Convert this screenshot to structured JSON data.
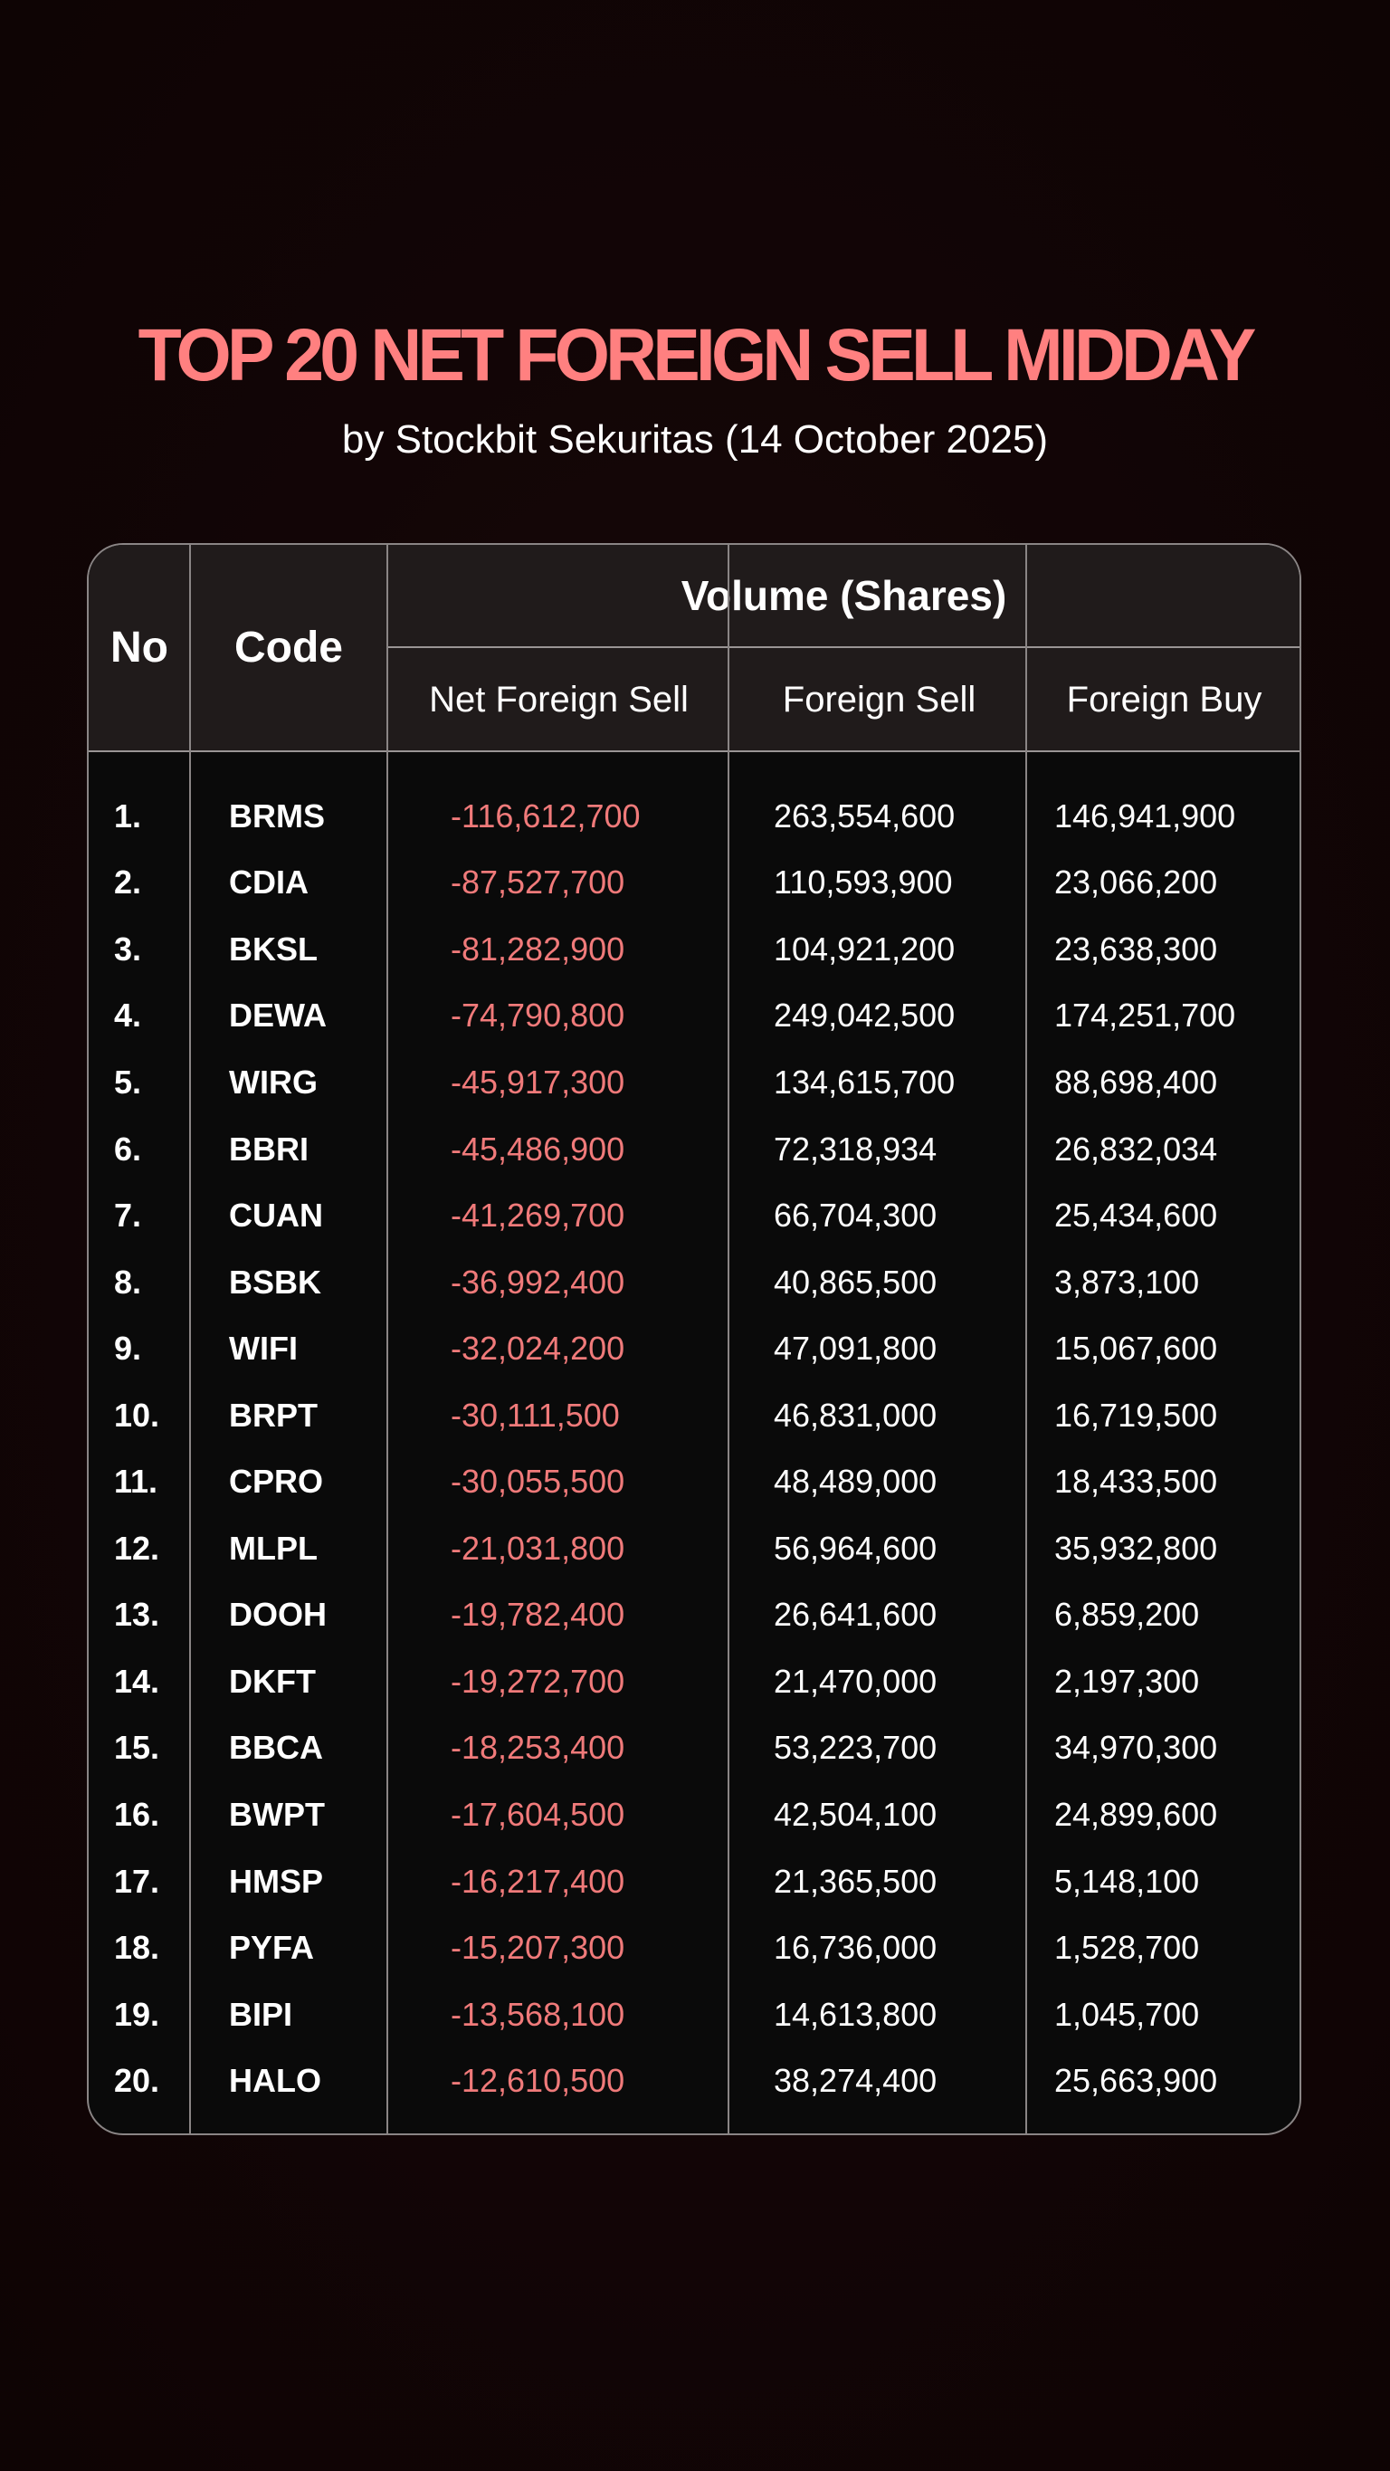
{
  "header": {
    "title": "TOP 20 NET FOREIGN SELL MIDDAY",
    "subtitle": "by Stockbit Sekuritas (14 October 2025)"
  },
  "colors": {
    "accent": "#ff8080",
    "negative": "#f07a7a",
    "background": "#120506"
  },
  "table": {
    "columns": {
      "no": "No",
      "code": "Code",
      "group": "Volume (Shares)",
      "net_foreign_sell": "Net Foreign Sell",
      "foreign_sell": "Foreign Sell",
      "foreign_buy": "Foreign Buy"
    },
    "rows": [
      {
        "no": "1.",
        "code": "BRMS",
        "net": "-116,612,700",
        "fs": "263,554,600",
        "fb": "146,941,900"
      },
      {
        "no": "2.",
        "code": "CDIA",
        "net": "-87,527,700",
        "fs": "110,593,900",
        "fb": "23,066,200"
      },
      {
        "no": "3.",
        "code": "BKSL",
        "net": "-81,282,900",
        "fs": "104,921,200",
        "fb": "23,638,300"
      },
      {
        "no": "4.",
        "code": "DEWA",
        "net": "-74,790,800",
        "fs": "249,042,500",
        "fb": "174,251,700"
      },
      {
        "no": "5.",
        "code": "WIRG",
        "net": "-45,917,300",
        "fs": "134,615,700",
        "fb": "88,698,400"
      },
      {
        "no": "6.",
        "code": "BBRI",
        "net": "-45,486,900",
        "fs": "72,318,934",
        "fb": "26,832,034"
      },
      {
        "no": "7.",
        "code": "CUAN",
        "net": "-41,269,700",
        "fs": "66,704,300",
        "fb": "25,434,600"
      },
      {
        "no": "8.",
        "code": "BSBK",
        "net": "-36,992,400",
        "fs": "40,865,500",
        "fb": "3,873,100"
      },
      {
        "no": "9.",
        "code": "WIFI",
        "net": "-32,024,200",
        "fs": "47,091,800",
        "fb": "15,067,600"
      },
      {
        "no": "10.",
        "code": "BRPT",
        "net": "-30,111,500",
        "fs": "46,831,000",
        "fb": "16,719,500"
      },
      {
        "no": "11.",
        "code": "CPRO",
        "net": "-30,055,500",
        "fs": "48,489,000",
        "fb": "18,433,500"
      },
      {
        "no": "12.",
        "code": "MLPL",
        "net": "-21,031,800",
        "fs": "56,964,600",
        "fb": "35,932,800"
      },
      {
        "no": "13.",
        "code": "DOOH",
        "net": "-19,782,400",
        "fs": "26,641,600",
        "fb": "6,859,200"
      },
      {
        "no": "14.",
        "code": "DKFT",
        "net": "-19,272,700",
        "fs": "21,470,000",
        "fb": "2,197,300"
      },
      {
        "no": "15.",
        "code": "BBCA",
        "net": "-18,253,400",
        "fs": "53,223,700",
        "fb": "34,970,300"
      },
      {
        "no": "16.",
        "code": "BWPT",
        "net": "-17,604,500",
        "fs": "42,504,100",
        "fb": "24,899,600"
      },
      {
        "no": "17.",
        "code": "HMSP",
        "net": "-16,217,400",
        "fs": "21,365,500",
        "fb": "5,148,100"
      },
      {
        "no": "18.",
        "code": "PYFA",
        "net": "-15,207,300",
        "fs": "16,736,000",
        "fb": "1,528,700"
      },
      {
        "no": "19.",
        "code": "BIPI",
        "net": "-13,568,100",
        "fs": "14,613,800",
        "fb": "1,045,700"
      },
      {
        "no": "20.",
        "code": "HALO",
        "net": "-12,610,500",
        "fs": "38,274,400",
        "fb": "25,663,900"
      }
    ]
  }
}
